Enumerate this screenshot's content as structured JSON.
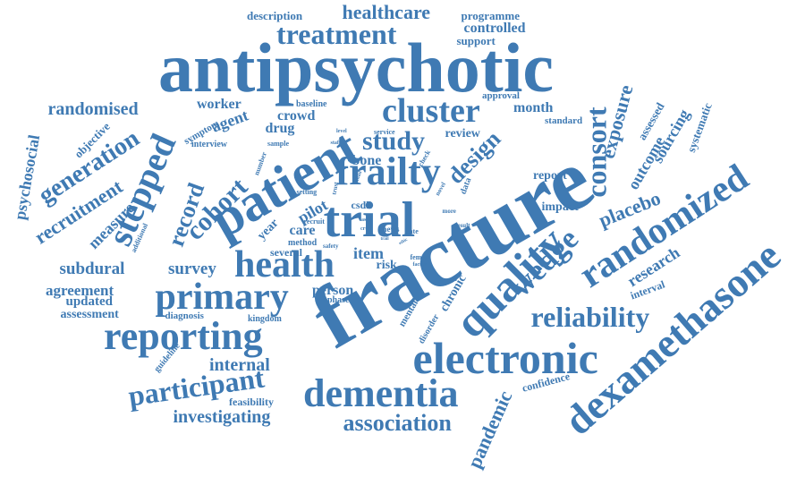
{
  "accent_color": "#3f7ab3",
  "words": [
    {
      "text": "antipsychotic",
      "weight": 10
    },
    {
      "text": "fracture",
      "weight": 10
    },
    {
      "text": "patient",
      "weight": 8
    },
    {
      "text": "trial",
      "weight": 8
    },
    {
      "text": "dexamethasone",
      "weight": 7
    },
    {
      "text": "electronic",
      "weight": 7
    },
    {
      "text": "quality",
      "weight": 7
    },
    {
      "text": "randomized",
      "weight": 7
    },
    {
      "text": "dementia",
      "weight": 7
    },
    {
      "text": "reporting",
      "weight": 7
    },
    {
      "text": "primary",
      "weight": 6
    },
    {
      "text": "health",
      "weight": 6
    },
    {
      "text": "frailty",
      "weight": 6
    },
    {
      "text": "cluster",
      "weight": 6
    },
    {
      "text": "stepped",
      "weight": 6
    },
    {
      "text": "wedge",
      "weight": 6
    },
    {
      "text": "reliability",
      "weight": 6
    },
    {
      "text": "consort",
      "weight": 6
    },
    {
      "text": "treatment",
      "weight": 5
    },
    {
      "text": "participant",
      "weight": 5
    },
    {
      "text": "cohort",
      "weight": 5
    },
    {
      "text": "generation",
      "weight": 5
    },
    {
      "text": "record",
      "weight": 5
    },
    {
      "text": "study",
      "weight": 5
    },
    {
      "text": "design",
      "weight": 5
    },
    {
      "text": "association",
      "weight": 5
    },
    {
      "text": "healthcare",
      "weight": 4
    },
    {
      "text": "recruitment",
      "weight": 4
    },
    {
      "text": "exposure",
      "weight": 4
    },
    {
      "text": "placebo",
      "weight": 4
    },
    {
      "text": "research",
      "weight": 4
    },
    {
      "text": "investigating",
      "weight": 4
    },
    {
      "text": "internal",
      "weight": 4
    },
    {
      "text": "pandemic",
      "weight": 4
    },
    {
      "text": "randomised",
      "weight": 4
    },
    {
      "text": "psychosocial",
      "weight": 4
    },
    {
      "text": "subdural",
      "weight": 4
    },
    {
      "text": "survey",
      "weight": 4
    },
    {
      "text": "measure",
      "weight": 4
    },
    {
      "text": "outcome",
      "weight": 4
    },
    {
      "text": "sourcing",
      "weight": 4
    },
    {
      "text": "agreement",
      "weight": 3
    },
    {
      "text": "updated",
      "weight": 3
    },
    {
      "text": "assessment",
      "weight": 3
    },
    {
      "text": "systematic",
      "weight": 3
    },
    {
      "text": "assessed",
      "weight": 3
    },
    {
      "text": "agent",
      "weight": 3
    },
    {
      "text": "drug",
      "weight": 3
    },
    {
      "text": "crowd",
      "weight": 3
    },
    {
      "text": "month",
      "weight": 3
    },
    {
      "text": "item",
      "weight": 3
    },
    {
      "text": "pilot",
      "weight": 3
    },
    {
      "text": "care",
      "weight": 3
    },
    {
      "text": "bone",
      "weight": 3
    },
    {
      "text": "worker",
      "weight": 3
    },
    {
      "text": "person",
      "weight": 3
    },
    {
      "text": "chronic",
      "weight": 3
    },
    {
      "text": "review",
      "weight": 3
    },
    {
      "text": "report",
      "weight": 3
    },
    {
      "text": "impact",
      "weight": 3
    },
    {
      "text": "controlled",
      "weight": 3
    },
    {
      "text": "programme",
      "weight": 2
    },
    {
      "text": "description",
      "weight": 2
    },
    {
      "text": "support",
      "weight": 2
    },
    {
      "text": "year",
      "weight": 3
    },
    {
      "text": "risk",
      "weight": 3
    },
    {
      "text": "csdh",
      "weight": 2
    },
    {
      "text": "several",
      "weight": 2
    },
    {
      "text": "method",
      "weight": 2
    },
    {
      "text": "feasibility",
      "weight": 2
    },
    {
      "text": "diagnosis",
      "weight": 2
    },
    {
      "text": "kingdom",
      "weight": 2
    },
    {
      "text": "phase",
      "weight": 2
    },
    {
      "text": "objective",
      "weight": 2
    },
    {
      "text": "symptom",
      "weight": 2
    },
    {
      "text": "interview",
      "weight": 2
    },
    {
      "text": "baseline",
      "weight": 2
    },
    {
      "text": "mental",
      "weight": 2
    },
    {
      "text": "disorder",
      "weight": 2
    },
    {
      "text": "guideline",
      "weight": 2
    },
    {
      "text": "confidence",
      "weight": 2
    },
    {
      "text": "interval",
      "weight": 2
    },
    {
      "text": "standard",
      "weight": 2
    },
    {
      "text": "approval",
      "weight": 2
    },
    {
      "text": "service",
      "weight": 1
    },
    {
      "text": "check",
      "weight": 1
    },
    {
      "text": "data",
      "weight": 2
    },
    {
      "text": "number",
      "weight": 1
    },
    {
      "text": "setting",
      "weight": 1
    },
    {
      "text": "sample",
      "weight": 1
    },
    {
      "text": "recruit",
      "weight": 1
    },
    {
      "text": "safety",
      "weight": 1
    },
    {
      "text": "news",
      "weight": 1
    },
    {
      "text": "rate",
      "weight": 1
    },
    {
      "text": "more",
      "weight": 1
    },
    {
      "text": "result",
      "weight": 1
    },
    {
      "text": "femur",
      "weight": 1
    },
    {
      "text": "factor",
      "weight": 1
    },
    {
      "text": "additional",
      "weight": 1
    },
    {
      "text": "level",
      "weight": 1
    },
    {
      "text": "staff",
      "weight": 1
    },
    {
      "text": "trust",
      "weight": 1
    },
    {
      "text": "novel",
      "weight": 1
    },
    {
      "text": "ass",
      "weight": 1
    },
    {
      "text": "crts",
      "weight": 1
    },
    {
      "text": "trail",
      "weight": 1
    },
    {
      "text": "ethic",
      "weight": 1
    },
    {
      "text": "email",
      "weight": 1
    }
  ]
}
